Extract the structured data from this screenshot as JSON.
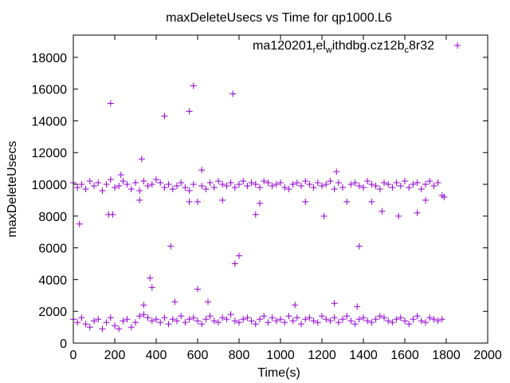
{
  "chart_data": {
    "type": "scatter",
    "title": "maxDeleteUsecs vs Time for qp1000.L6",
    "xlabel": "Time(s)",
    "ylabel": "maxDeleteUsecs",
    "xlim": [
      0,
      2000
    ],
    "ylim": [
      0,
      19400
    ],
    "xticks": [
      0,
      200,
      400,
      600,
      800,
      1000,
      1200,
      1400,
      1600,
      1800,
      2000
    ],
    "yticks": [
      0,
      2000,
      4000,
      6000,
      8000,
      10000,
      12000,
      14000,
      16000,
      18000
    ],
    "grid": false,
    "legend": {
      "position": "top-right",
      "label_parts": [
        "ma120201",
        "rel",
        "withdbg.cz12b",
        "c8r32"
      ]
    },
    "series": [
      {
        "name": "ma120201_rel_withdbg.cz12b_c8r32",
        "color": "#9400d3",
        "marker": "+",
        "band_x_start": 0,
        "band_x_step": 20,
        "low_band": [
          1500,
          1300,
          1600,
          1200,
          1000,
          1400,
          1500,
          900,
          1300,
          1600,
          1100,
          900,
          1400,
          1500,
          1000,
          1300,
          1700,
          1800,
          1600,
          1400,
          1500,
          1300,
          1600,
          1200,
          1500,
          1400,
          1700,
          1300,
          1500,
          1600,
          1400,
          1200,
          1500,
          1700,
          1400,
          1300,
          1600,
          1500,
          1800,
          1400,
          1300,
          1500,
          1600,
          1400,
          1200,
          1500,
          1700,
          1300,
          1600,
          1400,
          1500,
          1300,
          1700,
          1400,
          1600,
          1200,
          1500,
          1600,
          1400,
          1300,
          1700,
          1500,
          1400,
          1600,
          1300,
          1500,
          1700,
          1400,
          1200,
          1500,
          1600,
          1400,
          1300,
          1500,
          1700,
          1600,
          1400,
          1300,
          1500,
          1600,
          1400,
          1200,
          1500,
          1700,
          1400,
          1300,
          1600,
          1500,
          1400,
          1500
        ],
        "high_band": [
          10100,
          9800,
          10000,
          9700,
          10200,
          9900,
          10100,
          9600,
          10000,
          10300,
          9800,
          9900,
          10200,
          10000,
          9700,
          10100,
          9600,
          10200,
          9900,
          10000,
          10300,
          10100,
          9800,
          10000,
          9700,
          9900,
          10100,
          9800,
          9600,
          10000,
          8900,
          9900,
          9700,
          10100,
          9800,
          10200,
          10000,
          9900,
          10100,
          9800,
          10000,
          10200,
          9900,
          10100,
          10000,
          9800,
          10200,
          10100,
          9900,
          10000,
          10100,
          9800,
          9700,
          10000,
          10100,
          9900,
          10200,
          10000,
          9800,
          10100,
          9900,
          10000,
          10200,
          9700,
          10100,
          9800,
          8900,
          10000,
          10100,
          9900,
          9800,
          10200,
          10000,
          9900,
          9700,
          10100,
          10000,
          9800,
          10100,
          9900,
          10200,
          9800,
          10000,
          10100,
          9700,
          10000,
          10200,
          9900,
          10100,
          9300
        ],
        "outliers": [
          [
            30,
            7500
          ],
          [
            180,
            15100
          ],
          [
            230,
            10600
          ],
          [
            330,
            11600
          ],
          [
            340,
            2400
          ],
          [
            370,
            4100
          ],
          [
            380,
            3500
          ],
          [
            440,
            14300
          ],
          [
            470,
            6100
          ],
          [
            490,
            2600
          ],
          [
            560,
            14600
          ],
          [
            580,
            16200
          ],
          [
            600,
            3400
          ],
          [
            620,
            10900
          ],
          [
            650,
            2600
          ],
          [
            770,
            15700
          ],
          [
            780,
            5000
          ],
          [
            800,
            5500
          ],
          [
            1070,
            2400
          ],
          [
            1260,
            2500
          ],
          [
            1270,
            10800
          ],
          [
            1370,
            2300
          ],
          [
            1380,
            6100
          ],
          [
            170,
            8100
          ],
          [
            190,
            8100
          ],
          [
            880,
            8100
          ],
          [
            1210,
            8000
          ],
          [
            1490,
            8300
          ],
          [
            1570,
            8000
          ],
          [
            1660,
            8200
          ],
          [
            320,
            9000
          ],
          [
            560,
            8900
          ],
          [
            720,
            9000
          ],
          [
            900,
            8800
          ],
          [
            1120,
            8900
          ],
          [
            1440,
            8900
          ],
          [
            1700,
            9000
          ],
          [
            1790,
            9200
          ]
        ]
      }
    ]
  }
}
